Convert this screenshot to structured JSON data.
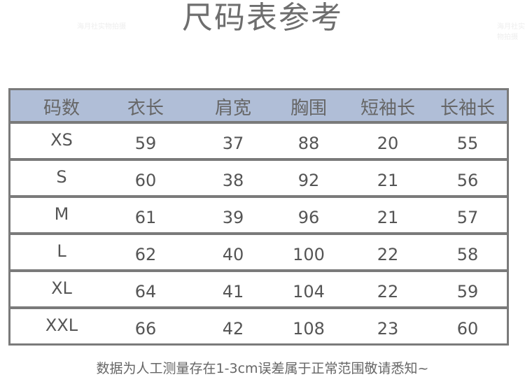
{
  "title": "尺码表参考",
  "watermark": "海月社实物拍摄",
  "table": {
    "header_color": "#b0bed7",
    "headers": [
      "码数",
      "衣长",
      "肩宽",
      "胸围",
      "短袖长",
      "长袖长"
    ],
    "rows": [
      [
        "XS",
        "59",
        "37",
        "88",
        "20",
        "55"
      ],
      [
        "S",
        "60",
        "38",
        "92",
        "21",
        "56"
      ],
      [
        "M",
        "61",
        "39",
        "96",
        "21",
        "57"
      ],
      [
        "L",
        "62",
        "40",
        "100",
        "22",
        "58"
      ],
      [
        "XL",
        "64",
        "41",
        "104",
        "22",
        "59"
      ],
      [
        "XXL",
        "66",
        "42",
        "108",
        "23",
        "60"
      ]
    ]
  },
  "note": "数据为人工测量存在1-3cm误差属于正常范围敬请悉知~"
}
